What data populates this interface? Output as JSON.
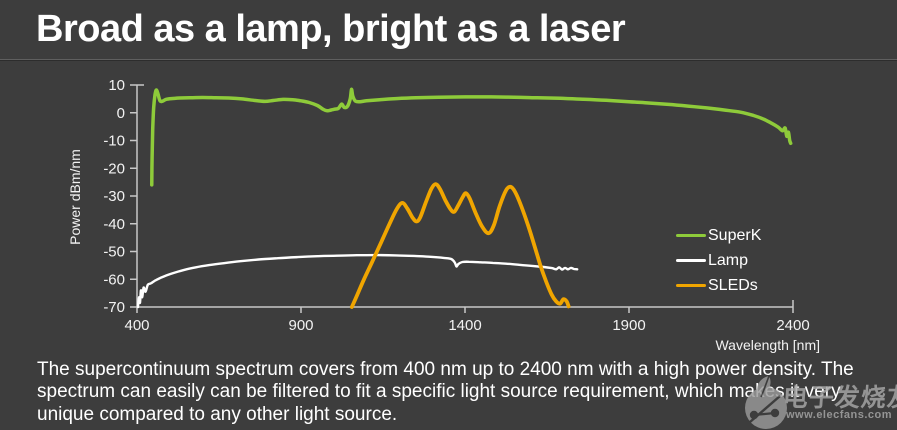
{
  "slide": {
    "title": "Broad as a lamp, bright as a laser",
    "body_lines": [
      "The supercontinuum spectrum covers from 400 nm up to 2400 nm with a high power density. The",
      "spectrum can easily can be filtered to fit a specific light source requirement, which makes it very",
      "unique compared to any other light source."
    ]
  },
  "chart_data": {
    "type": "line",
    "title": "",
    "xlabel": "Wavelength [nm]",
    "ylabel": "Power dBm/nm",
    "xlim": [
      400,
      2400
    ],
    "ylim": [
      -70,
      10
    ],
    "xticks": [
      400,
      900,
      1400,
      1900,
      2400
    ],
    "yticks": [
      10,
      0,
      -10,
      -20,
      -30,
      -40,
      -50,
      -60,
      -70
    ],
    "grid": false,
    "legend_position": "right-middle",
    "axis_color": "#c8c8c8",
    "tick_label_color": "#f2f2f2",
    "series": [
      {
        "name": "SuperK",
        "color": "#8ecb3a",
        "stroke_width": 3.5,
        "points": [
          [
            445,
            -26
          ],
          [
            446,
            -16
          ],
          [
            448,
            -6
          ],
          [
            451,
            2
          ],
          [
            455,
            6.5
          ],
          [
            459,
            8.2
          ],
          [
            464,
            6.8
          ],
          [
            470,
            4.3
          ],
          [
            478,
            4.2
          ],
          [
            488,
            4.8
          ],
          [
            505,
            5.1
          ],
          [
            530,
            5.3
          ],
          [
            560,
            5.4
          ],
          [
            600,
            5.5
          ],
          [
            640,
            5.4
          ],
          [
            680,
            5.3
          ],
          [
            720,
            5.0
          ],
          [
            760,
            4.4
          ],
          [
            790,
            4.1
          ],
          [
            815,
            4.4
          ],
          [
            845,
            4.8
          ],
          [
            875,
            4.7
          ],
          [
            900,
            4.3
          ],
          [
            925,
            3.7
          ],
          [
            950,
            2.6
          ],
          [
            968,
            1.2
          ],
          [
            980,
            0.7
          ],
          [
            992,
            1.0
          ],
          [
            1004,
            1.3
          ],
          [
            1014,
            1.6
          ],
          [
            1024,
            3.1
          ],
          [
            1032,
            1.9
          ],
          [
            1042,
            2.4
          ],
          [
            1050,
            5.0
          ],
          [
            1054,
            8.4
          ],
          [
            1058,
            6.0
          ],
          [
            1066,
            4.2
          ],
          [
            1080,
            4.0
          ],
          [
            1100,
            4.3
          ],
          [
            1140,
            4.7
          ],
          [
            1190,
            5.1
          ],
          [
            1250,
            5.4
          ],
          [
            1320,
            5.6
          ],
          [
            1400,
            5.7
          ],
          [
            1480,
            5.7
          ],
          [
            1550,
            5.6
          ],
          [
            1620,
            5.4
          ],
          [
            1690,
            5.2
          ],
          [
            1760,
            4.9
          ],
          [
            1830,
            4.5
          ],
          [
            1900,
            4.0
          ],
          [
            1960,
            3.5
          ],
          [
            2020,
            3.0
          ],
          [
            2080,
            2.4
          ],
          [
            2140,
            1.7
          ],
          [
            2190,
            1.0
          ],
          [
            2240,
            0.2
          ],
          [
            2280,
            -1.0
          ],
          [
            2310,
            -2.3
          ],
          [
            2335,
            -3.8
          ],
          [
            2355,
            -5.2
          ],
          [
            2368,
            -6.5
          ],
          [
            2376,
            -5.5
          ],
          [
            2381,
            -8.5
          ],
          [
            2386,
            -7.0
          ],
          [
            2390,
            -10.0
          ],
          [
            2393,
            -11.0
          ]
        ]
      },
      {
        "name": "Lamp",
        "color": "#ffffff",
        "stroke_width": 2.4,
        "points": [
          [
            403,
            -70
          ],
          [
            406,
            -66.5
          ],
          [
            409,
            -68.5
          ],
          [
            412,
            -64
          ],
          [
            416,
            -66.5
          ],
          [
            420,
            -63
          ],
          [
            426,
            -64.5
          ],
          [
            433,
            -62
          ],
          [
            442,
            -61.5
          ],
          [
            455,
            -60.5
          ],
          [
            470,
            -59.6
          ],
          [
            490,
            -58.6
          ],
          [
            515,
            -57.6
          ],
          [
            545,
            -56.6
          ],
          [
            580,
            -55.7
          ],
          [
            620,
            -54.9
          ],
          [
            665,
            -54.2
          ],
          [
            715,
            -53.5
          ],
          [
            770,
            -52.9
          ],
          [
            830,
            -52.4
          ],
          [
            890,
            -52.0
          ],
          [
            950,
            -51.7
          ],
          [
            1010,
            -51.5
          ],
          [
            1070,
            -51.35
          ],
          [
            1130,
            -51.3
          ],
          [
            1190,
            -51.4
          ],
          [
            1245,
            -51.6
          ],
          [
            1295,
            -51.9
          ],
          [
            1335,
            -52.3
          ],
          [
            1358,
            -52.7
          ],
          [
            1369,
            -54.0
          ],
          [
            1374,
            -55.4
          ],
          [
            1380,
            -54.5
          ],
          [
            1392,
            -53.8
          ],
          [
            1412,
            -53.7
          ],
          [
            1448,
            -53.9
          ],
          [
            1485,
            -54.1
          ],
          [
            1525,
            -54.4
          ],
          [
            1565,
            -54.8
          ],
          [
            1605,
            -55.2
          ],
          [
            1640,
            -55.6
          ],
          [
            1665,
            -56.0
          ],
          [
            1678,
            -56.4
          ],
          [
            1687,
            -55.7
          ],
          [
            1696,
            -56.5
          ],
          [
            1705,
            -55.9
          ],
          [
            1714,
            -56.4
          ],
          [
            1723,
            -55.9
          ],
          [
            1732,
            -56.3
          ],
          [
            1742,
            -56.4
          ]
        ]
      },
      {
        "name": "SLEDs",
        "color": "#f0a500",
        "stroke_width": 3.8,
        "points": [
          [
            1055,
            -70
          ],
          [
            1072,
            -65.5
          ],
          [
            1092,
            -60
          ],
          [
            1118,
            -53.5
          ],
          [
            1145,
            -46.5
          ],
          [
            1172,
            -39.5
          ],
          [
            1193,
            -34.5
          ],
          [
            1209,
            -32.5
          ],
          [
            1224,
            -34.5
          ],
          [
            1240,
            -37.8
          ],
          [
            1252,
            -39.2
          ],
          [
            1263,
            -37.8
          ],
          [
            1280,
            -32.5
          ],
          [
            1297,
            -27.5
          ],
          [
            1310,
            -25.7
          ],
          [
            1323,
            -27.3
          ],
          [
            1340,
            -31.5
          ],
          [
            1356,
            -34.8
          ],
          [
            1367,
            -35.7
          ],
          [
            1379,
            -33.5
          ],
          [
            1394,
            -30.2
          ],
          [
            1403,
            -29.0
          ],
          [
            1414,
            -30.8
          ],
          [
            1432,
            -36
          ],
          [
            1452,
            -41
          ],
          [
            1472,
            -43.4
          ],
          [
            1488,
            -40.5
          ],
          [
            1506,
            -33.5
          ],
          [
            1525,
            -28.0
          ],
          [
            1539,
            -26.7
          ],
          [
            1553,
            -28.6
          ],
          [
            1572,
            -33.8
          ],
          [
            1592,
            -40.5
          ],
          [
            1612,
            -48
          ],
          [
            1630,
            -55
          ],
          [
            1648,
            -61
          ],
          [
            1664,
            -65.5
          ],
          [
            1678,
            -68
          ],
          [
            1690,
            -68.8
          ],
          [
            1700,
            -67.2
          ],
          [
            1710,
            -68.0
          ],
          [
            1716,
            -69.8
          ]
        ]
      }
    ],
    "draw_order": [
      1,
      2,
      0
    ]
  },
  "watermark": {
    "cn_text": "电子发烧友",
    "url": "www.elecfans.com",
    "logo": "elecfans-leaf-circuit-logo",
    "color": "#a8a8a8"
  },
  "colors": {
    "background": "#3d3d3d",
    "title_text": "#ffffff",
    "body_text": "#ffffff",
    "divider": "#5f5f5f"
  }
}
